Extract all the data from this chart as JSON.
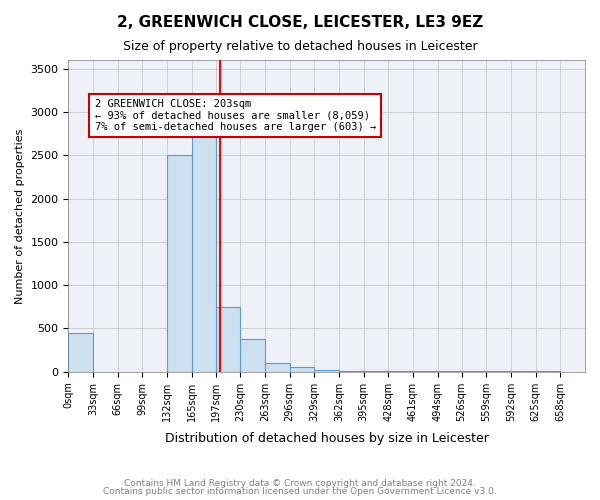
{
  "title1": "2, GREENWICH CLOSE, LEICESTER, LE3 9EZ",
  "title2": "Size of property relative to detached houses in Leicester",
  "xlabel": "Distribution of detached houses by size in Leicester",
  "ylabel": "Number of detached properties",
  "bar_color": "#cce0f0",
  "bar_edge_color": "#5b9bd5",
  "grid_color": "#c0c0c0",
  "background_color": "#eef2f8",
  "annotation_box_color": "#cc0000",
  "annotation_text": "2 GREENWICH CLOSE: 203sqm\n← 93% of detached houses are smaller (8,059)\n7% of semi-detached houses are larger (603) →",
  "red_line_x": 203,
  "tick_labels": [
    "0sqm",
    "33sqm",
    "66sqm",
    "99sqm",
    "132sqm",
    "165sqm",
    "197sqm",
    "230sqm",
    "263sqm",
    "296sqm",
    "329sqm",
    "362sqm",
    "395sqm",
    "428sqm",
    "461sqm",
    "494sqm",
    "526sqm",
    "559sqm",
    "592sqm",
    "625sqm",
    "658sqm"
  ],
  "bin_edges": [
    0,
    33,
    66,
    99,
    132,
    165,
    197,
    230,
    263,
    296,
    329,
    362,
    395,
    428,
    461,
    494,
    526,
    559,
    592,
    625,
    658
  ],
  "bar_heights": [
    450,
    0,
    0,
    0,
    2500,
    2800,
    750,
    375,
    100,
    50,
    20,
    10,
    5,
    5,
    5,
    5,
    5,
    5,
    5,
    5
  ],
  "ylim": [
    0,
    3600
  ],
  "yticks": [
    0,
    500,
    1000,
    1500,
    2000,
    2500,
    3000,
    3500
  ],
  "footer1": "Contains HM Land Registry data © Crown copyright and database right 2024.",
  "footer2": "Contains public sector information licensed under the Open Government Licence v3.0."
}
